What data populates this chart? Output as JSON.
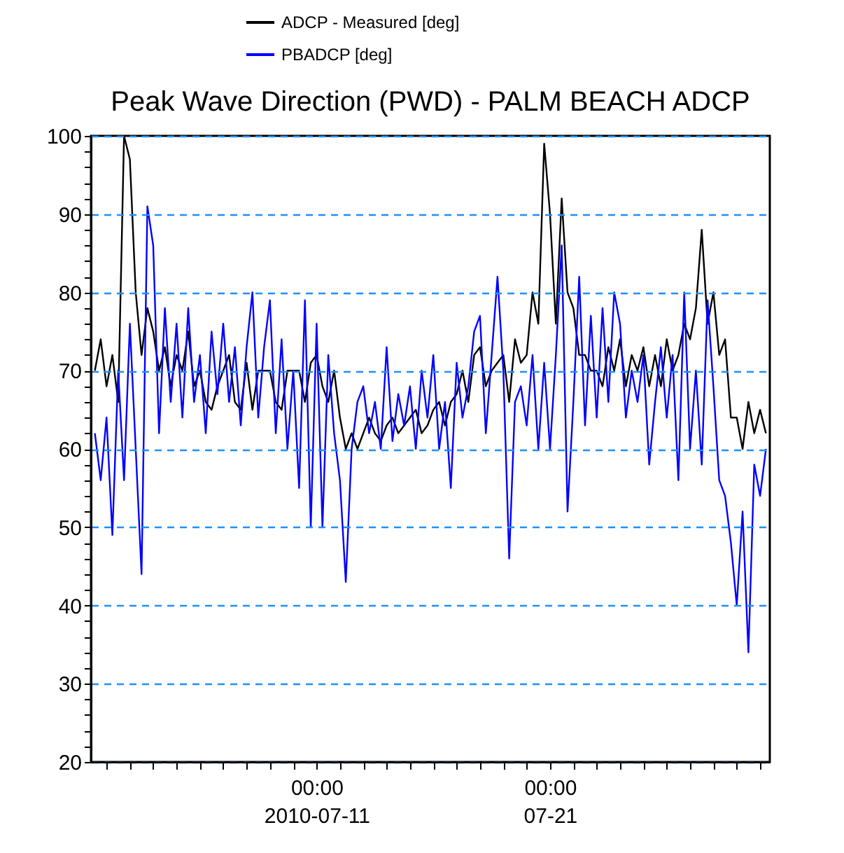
{
  "chart_data": {
    "type": "line",
    "title": "Peak Wave Direction (PWD) - PALM BEACH ADCP",
    "x": [
      "2010-07-01T12:00",
      "2010-07-01T18:00",
      "2010-07-02T00:00",
      "2010-07-02T06:00",
      "2010-07-02T12:00",
      "2010-07-02T18:00",
      "2010-07-03T00:00",
      "2010-07-03T06:00",
      "2010-07-03T12:00",
      "2010-07-03T18:00",
      "2010-07-04T00:00",
      "2010-07-04T06:00",
      "2010-07-04T12:00",
      "2010-07-04T18:00",
      "2010-07-05T00:00",
      "2010-07-05T06:00",
      "2010-07-05T12:00",
      "2010-07-05T18:00",
      "2010-07-06T00:00",
      "2010-07-06T06:00",
      "2010-07-06T12:00",
      "2010-07-06T18:00",
      "2010-07-07T00:00",
      "2010-07-07T06:00",
      "2010-07-07T12:00",
      "2010-07-07T18:00",
      "2010-07-08T00:00",
      "2010-07-08T06:00",
      "2010-07-08T12:00",
      "2010-07-08T18:00",
      "2010-07-09T00:00",
      "2010-07-09T06:00",
      "2010-07-09T12:00",
      "2010-07-09T18:00",
      "2010-07-10T00:00",
      "2010-07-10T06:00",
      "2010-07-10T12:00",
      "2010-07-10T18:00",
      "2010-07-11T00:00",
      "2010-07-11T06:00",
      "2010-07-11T12:00",
      "2010-07-11T18:00",
      "2010-07-12T00:00",
      "2010-07-12T06:00",
      "2010-07-12T12:00",
      "2010-07-12T18:00",
      "2010-07-13T00:00",
      "2010-07-13T06:00",
      "2010-07-13T12:00",
      "2010-07-13T18:00",
      "2010-07-14T00:00",
      "2010-07-14T06:00",
      "2010-07-14T12:00",
      "2010-07-14T18:00",
      "2010-07-15T00:00",
      "2010-07-15T06:00",
      "2010-07-15T12:00",
      "2010-07-15T18:00",
      "2010-07-16T00:00",
      "2010-07-16T06:00",
      "2010-07-16T12:00",
      "2010-07-16T18:00",
      "2010-07-17T00:00",
      "2010-07-17T06:00",
      "2010-07-17T12:00",
      "2010-07-17T18:00",
      "2010-07-18T00:00",
      "2010-07-18T06:00",
      "2010-07-18T12:00",
      "2010-07-18T18:00",
      "2010-07-19T00:00",
      "2010-07-19T06:00",
      "2010-07-19T12:00",
      "2010-07-19T18:00",
      "2010-07-20T00:00",
      "2010-07-20T06:00",
      "2010-07-20T12:00",
      "2010-07-20T18:00",
      "2010-07-21T00:00",
      "2010-07-21T06:00",
      "2010-07-21T12:00",
      "2010-07-21T18:00",
      "2010-07-22T00:00",
      "2010-07-22T06:00",
      "2010-07-22T12:00",
      "2010-07-22T18:00",
      "2010-07-23T00:00",
      "2010-07-23T06:00",
      "2010-07-23T12:00",
      "2010-07-23T18:00",
      "2010-07-24T00:00",
      "2010-07-24T06:00",
      "2010-07-24T12:00",
      "2010-07-24T18:00",
      "2010-07-25T00:00",
      "2010-07-25T06:00",
      "2010-07-25T12:00",
      "2010-07-25T18:00",
      "2010-07-26T00:00",
      "2010-07-26T06:00",
      "2010-07-26T12:00",
      "2010-07-26T18:00",
      "2010-07-27T00:00",
      "2010-07-27T06:00",
      "2010-07-27T12:00",
      "2010-07-27T18:00",
      "2010-07-28T00:00",
      "2010-07-28T06:00",
      "2010-07-28T12:00",
      "2010-07-28T18:00",
      "2010-07-29T00:00",
      "2010-07-29T06:00",
      "2010-07-29T12:00",
      "2010-07-29T18:00",
      "2010-07-30T00:00",
      "2010-07-30T06:00"
    ],
    "series": [
      {
        "name": "ADCP - Measured [deg]",
        "color": "#000000",
        "values": [
          70,
          74,
          68,
          72,
          66,
          100,
          97,
          80,
          72,
          78,
          75,
          70,
          73,
          68,
          72,
          70,
          75,
          68,
          70,
          66,
          65,
          68,
          70,
          72,
          66,
          65,
          71,
          65,
          70,
          70,
          70,
          66,
          65,
          70,
          70,
          70,
          66,
          71,
          72,
          68,
          66,
          70,
          64,
          60,
          62,
          60,
          62,
          64,
          62,
          61,
          63,
          64,
          62,
          63,
          64,
          65,
          62,
          63,
          65,
          66,
          63,
          66,
          67,
          70,
          66,
          72,
          73,
          68,
          70,
          71,
          72,
          66,
          74,
          71,
          72,
          80,
          76,
          99,
          90,
          76,
          92,
          80,
          78,
          72,
          72,
          70,
          70,
          68,
          73,
          70,
          74,
          68,
          72,
          70,
          73,
          68,
          72,
          68,
          74,
          70,
          72,
          76,
          74,
          78,
          88,
          76,
          80,
          72,
          74,
          64,
          64,
          60,
          66,
          62,
          65,
          62
        ]
      },
      {
        "name": "PBADCP [deg]",
        "color": "#0000ff",
        "values": [
          62,
          56,
          64,
          49,
          70,
          56,
          76,
          60,
          44,
          91,
          86,
          62,
          78,
          66,
          76,
          64,
          78,
          66,
          72,
          62,
          75,
          67,
          76,
          66,
          73,
          63,
          73,
          80,
          64,
          73,
          79,
          62,
          74,
          60,
          70,
          55,
          79,
          50,
          76,
          50,
          72,
          62,
          56,
          43,
          60,
          66,
          68,
          62,
          66,
          60,
          73,
          61,
          67,
          63,
          68,
          60,
          70,
          64,
          72,
          60,
          66,
          55,
          71,
          64,
          68,
          75,
          77,
          62,
          72,
          82,
          70,
          46,
          66,
          68,
          63,
          72,
          60,
          71,
          60,
          72,
          86,
          52,
          66,
          82,
          63,
          77,
          64,
          78,
          66,
          80,
          76,
          64,
          70,
          66,
          72,
          58,
          66,
          73,
          64,
          72,
          56,
          80,
          60,
          70,
          58,
          79,
          68,
          56,
          54,
          48,
          40,
          52,
          34,
          58,
          54,
          60
        ]
      }
    ],
    "xlim": [
      "2010-07-01T08:00",
      "2010-07-30T10:00"
    ],
    "xticks": [
      {
        "value": "2010-07-02T00:00",
        "label": null
      },
      {
        "value": "2010-07-03T00:00",
        "label": null
      },
      {
        "value": "2010-07-04T00:00",
        "label": null
      },
      {
        "value": "2010-07-05T00:00",
        "label": null
      },
      {
        "value": "2010-07-06T00:00",
        "label": null
      },
      {
        "value": "2010-07-07T00:00",
        "label": null
      },
      {
        "value": "2010-07-08T00:00",
        "label": null
      },
      {
        "value": "2010-07-09T00:00",
        "label": null
      },
      {
        "value": "2010-07-10T00:00",
        "label": null
      },
      {
        "value": "2010-07-11T00:00",
        "label": "00:00\n2010-07-11"
      },
      {
        "value": "2010-07-12T00:00",
        "label": null
      },
      {
        "value": "2010-07-13T00:00",
        "label": null
      },
      {
        "value": "2010-07-14T00:00",
        "label": null
      },
      {
        "value": "2010-07-15T00:00",
        "label": null
      },
      {
        "value": "2010-07-16T00:00",
        "label": null
      },
      {
        "value": "2010-07-17T00:00",
        "label": null
      },
      {
        "value": "2010-07-18T00:00",
        "label": null
      },
      {
        "value": "2010-07-19T00:00",
        "label": null
      },
      {
        "value": "2010-07-20T00:00",
        "label": null
      },
      {
        "value": "2010-07-21T00:00",
        "label": "00:00\n07-21"
      },
      {
        "value": "2010-07-22T00:00",
        "label": null
      },
      {
        "value": "2010-07-23T00:00",
        "label": null
      },
      {
        "value": "2010-07-24T00:00",
        "label": null
      },
      {
        "value": "2010-07-25T00:00",
        "label": null
      },
      {
        "value": "2010-07-26T00:00",
        "label": null
      },
      {
        "value": "2010-07-27T00:00",
        "label": null
      },
      {
        "value": "2010-07-28T00:00",
        "label": null
      },
      {
        "value": "2010-07-29T00:00",
        "label": null
      },
      {
        "value": "2010-07-30T00:00",
        "label": null
      }
    ],
    "ylim": [
      20,
      100
    ],
    "yticks": [
      20,
      {
        "value": 22,
        "label": null
      },
      {
        "value": 24,
        "label": null
      },
      {
        "value": 26,
        "label": null
      },
      {
        "value": 28,
        "label": null
      },
      30,
      {
        "value": 32,
        "label": null
      },
      {
        "value": 34,
        "label": null
      },
      {
        "value": 36,
        "label": null
      },
      {
        "value": 38,
        "label": null
      },
      40,
      {
        "value": 42,
        "label": null
      },
      {
        "value": 44,
        "label": null
      },
      {
        "value": 46,
        "label": null
      },
      {
        "value": 48,
        "label": null
      },
      50,
      {
        "value": 52,
        "label": null
      },
      {
        "value": 54,
        "label": null
      },
      {
        "value": 56,
        "label": null
      },
      {
        "value": 58,
        "label": null
      },
      60,
      {
        "value": 62,
        "label": null
      },
      {
        "value": 64,
        "label": null
      },
      {
        "value": 66,
        "label": null
      },
      {
        "value": 68,
        "label": null
      },
      70,
      {
        "value": 72,
        "label": null
      },
      {
        "value": 74,
        "label": null
      },
      {
        "value": 76,
        "label": null
      },
      {
        "value": 78,
        "label": null
      },
      80,
      {
        "value": 82,
        "label": null
      },
      {
        "value": 84,
        "label": null
      },
      {
        "value": 86,
        "label": null
      },
      {
        "value": 88,
        "label": null
      },
      90,
      {
        "value": 92,
        "label": null
      },
      {
        "value": 94,
        "label": null
      },
      {
        "value": 96,
        "label": null
      },
      {
        "value": 98,
        "label": null
      },
      100
    ],
    "grid": true,
    "legend": "top",
    "line_style": "solid"
  }
}
